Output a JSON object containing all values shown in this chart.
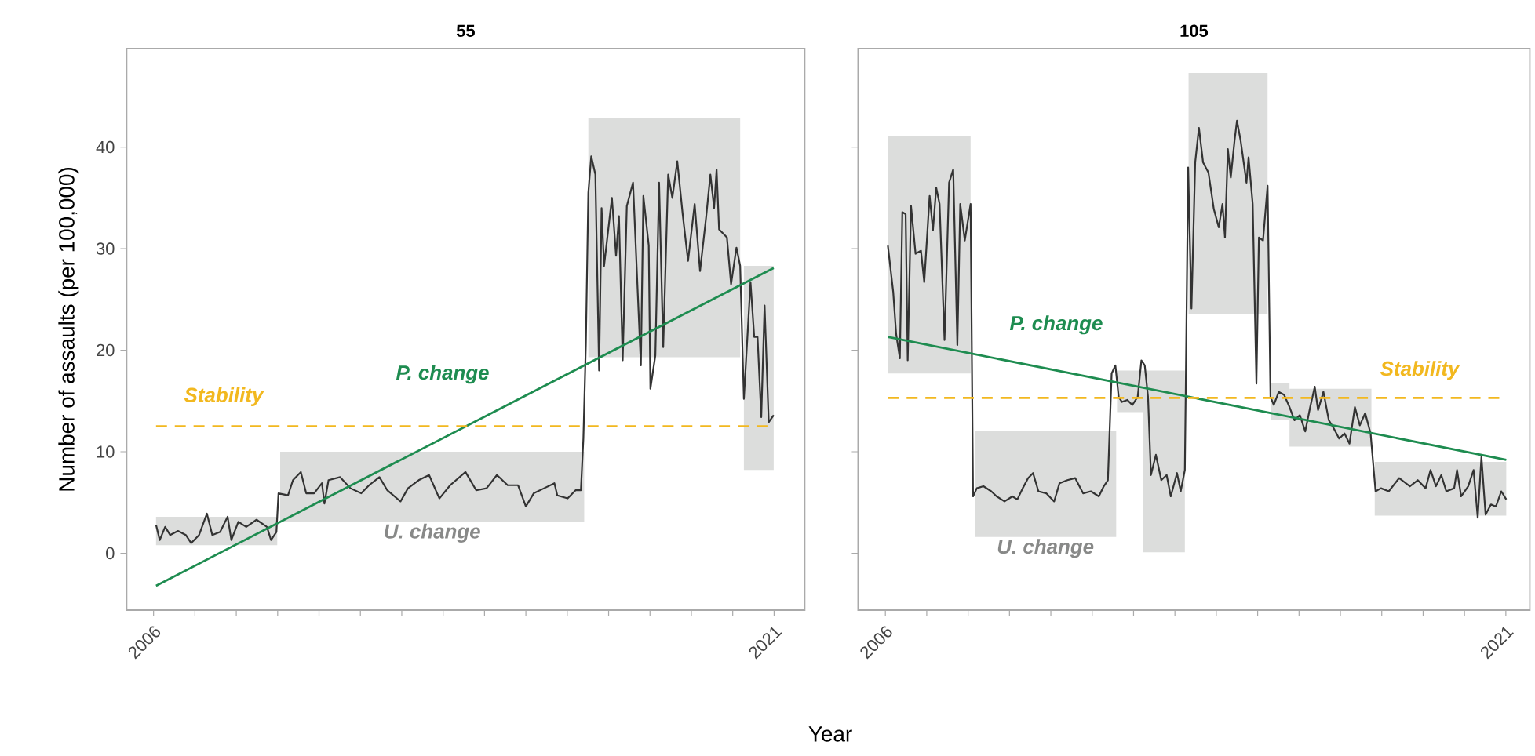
{
  "chart_data": [
    {
      "type": "line",
      "title": "55",
      "xlabel": "Year",
      "ylabel": "Number of assaults (per 100,000)",
      "xlim": [
        2005.35,
        2021.74
      ],
      "ylim": [
        -5.6,
        49.7
      ],
      "xticks": [
        2006,
        {
          "value": 2007,
          "label": null
        },
        {
          "value": 2008,
          "label": null
        },
        {
          "value": 2009,
          "label": null
        },
        {
          "value": 2010,
          "label": null
        },
        {
          "value": 2011,
          "label": null
        },
        {
          "value": 2012,
          "label": null
        },
        {
          "value": 2013,
          "label": null
        },
        {
          "value": 2014,
          "label": null
        },
        {
          "value": 2015,
          "label": null
        },
        {
          "value": 2016,
          "label": null
        },
        {
          "value": 2017,
          "label": null
        },
        {
          "value": 2018,
          "label": null
        },
        {
          "value": 2019,
          "label": null
        },
        {
          "value": 2020,
          "label": null
        },
        2021
      ],
      "yticks": [
        0,
        10,
        20,
        30,
        40
      ],
      "series": [
        {
          "type": "area",
          "color": "#dcdddc",
          "x": [
            2006.06,
            2008.99,
            null,
            2009.06,
            2016.41,
            null,
            2016.51,
            2020.18,
            null,
            2020.27,
            2020.99
          ],
          "values": [
            null,
            null,
            null,
            null,
            null,
            null,
            null,
            null,
            null,
            null,
            null
          ],
          "upper": [
            3.6,
            3.6,
            null,
            10.0,
            10.0,
            null,
            42.9,
            42.9,
            null,
            28.3,
            28.3
          ],
          "lower": [
            0.8,
            0.8,
            null,
            3.1,
            3.1,
            null,
            19.3,
            19.3,
            null,
            8.2,
            8.2
          ]
        },
        {
          "color": "#333333",
          "x": [
            2006.06,
            2006.15,
            2006.28,
            2006.4,
            2006.59,
            2006.78,
            2006.91,
            2007.1,
            2007.29,
            2007.42,
            2007.61,
            2007.79,
            2007.88,
            2008.05,
            2008.24,
            2008.49,
            2008.74,
            2008.84,
            2008.97,
            2009.02,
            2009.25,
            2009.37,
            2009.56,
            2009.69,
            2009.88,
            2010.07,
            2010.13,
            2010.23,
            2010.51,
            2010.76,
            2011.02,
            2011.21,
            2011.46,
            2011.65,
            2011.97,
            2012.15,
            2012.41,
            2012.66,
            2012.91,
            2013.17,
            2013.54,
            2013.8,
            2014.05,
            2014.3,
            2014.56,
            2014.81,
            2015.0,
            2015.19,
            2015.44,
            2015.69,
            2015.76,
            2016.01,
            2016.2,
            2016.33,
            2016.39,
            2016.45,
            2016.51,
            2016.58,
            2016.68,
            2016.77,
            2016.83,
            2016.89,
            2017.02,
            2017.08,
            2017.18,
            2017.25,
            2017.34,
            2017.44,
            2017.59,
            2017.78,
            2017.84,
            2017.97,
            2018.01,
            2018.13,
            2018.22,
            2018.32,
            2018.44,
            2018.54,
            2018.66,
            2018.79,
            2018.92,
            2019.08,
            2019.21,
            2019.36,
            2019.46,
            2019.55,
            2019.61,
            2019.67,
            2019.86,
            2019.96,
            2020.09,
            2020.18,
            2020.27,
            2020.43,
            2020.52,
            2020.6,
            2020.69,
            2020.77,
            2020.87,
            2020.99
          ],
          "values": [
            2.8,
            1.3,
            2.6,
            1.8,
            2.2,
            1.8,
            1.0,
            1.8,
            3.9,
            1.8,
            2.1,
            3.6,
            1.3,
            3.1,
            2.6,
            3.3,
            2.6,
            1.3,
            2.1,
            5.9,
            5.7,
            7.2,
            8.0,
            5.9,
            5.9,
            6.9,
            4.9,
            7.2,
            7.5,
            6.4,
            5.9,
            6.7,
            7.5,
            6.2,
            5.1,
            6.4,
            7.2,
            7.7,
            5.4,
            6.7,
            8.0,
            6.2,
            6.4,
            7.7,
            6.7,
            6.7,
            4.6,
            5.9,
            6.4,
            6.9,
            5.7,
            5.4,
            6.2,
            6.2,
            11.3,
            20.6,
            35.5,
            39.1,
            37.3,
            18.0,
            34.0,
            28.3,
            32.9,
            35.0,
            29.3,
            33.2,
            19.0,
            34.2,
            36.5,
            18.5,
            35.2,
            30.3,
            16.2,
            19.5,
            36.5,
            20.3,
            37.3,
            35.0,
            38.6,
            33.4,
            28.8,
            34.4,
            27.8,
            33.2,
            37.3,
            34.0,
            37.8,
            31.9,
            31.1,
            26.5,
            30.1,
            28.3,
            15.2,
            26.7,
            21.3,
            21.3,
            13.4,
            24.4,
            12.9,
            13.6
          ]
        },
        {
          "type": "line",
          "name": "P. change",
          "color": "#1e8c50",
          "x": [
            2006.06,
            2020.99
          ],
          "values": [
            -3.2,
            28.1
          ]
        }
      ],
      "ref_lines": [
        {
          "axis": "y",
          "value": 12.5,
          "label": "Stability",
          "color": "#f2b81f",
          "line_style": "dashed"
        }
      ],
      "annotations": [
        "U. change"
      ]
    },
    {
      "type": "line",
      "title": "105",
      "tick_labels": "x",
      "xlim": [
        2005.34,
        2021.58
      ],
      "ylim": [
        -5.6,
        49.7
      ],
      "xticks": [
        2006,
        {
          "value": 2007,
          "label": null
        },
        {
          "value": 2008,
          "label": null
        },
        {
          "value": 2009,
          "label": null
        },
        {
          "value": 2010,
          "label": null
        },
        {
          "value": 2011,
          "label": null
        },
        {
          "value": 2012,
          "label": null
        },
        {
          "value": 2013,
          "label": null
        },
        {
          "value": 2014,
          "label": null
        },
        {
          "value": 2015,
          "label": null
        },
        {
          "value": 2016,
          "label": null
        },
        {
          "value": 2017,
          "label": null
        },
        {
          "value": 2018,
          "label": null
        },
        {
          "value": 2019,
          "label": null
        },
        {
          "value": 2020,
          "label": null
        },
        2021
      ],
      "yticks": [
        0,
        10,
        20,
        30,
        40
      ],
      "series": [
        {
          "type": "area",
          "color": "#dcdddc",
          "x": [
            2006.06,
            2008.06,
            null,
            2008.16,
            2011.58,
            null,
            2011.6,
            2012.23,
            null,
            2012.23,
            2013.24,
            null,
            2013.33,
            2015.24,
            null,
            2015.31,
            2015.77,
            null,
            2015.77,
            2017.75,
            null,
            2017.83,
            2021.01
          ],
          "values": [
            null,
            null,
            null,
            null,
            null,
            null,
            null,
            null,
            null,
            null,
            null,
            null,
            null,
            null,
            null,
            null,
            null,
            null,
            null,
            null,
            null,
            null,
            null
          ],
          "upper": [
            41.1,
            41.1,
            null,
            12.0,
            12.0,
            null,
            18.0,
            18.0,
            null,
            18.0,
            18.0,
            null,
            47.3,
            47.3,
            null,
            16.8,
            16.8,
            null,
            16.2,
            16.2,
            null,
            9.0,
            9.0
          ],
          "lower": [
            17.7,
            17.7,
            null,
            1.6,
            1.6,
            null,
            13.9,
            13.9,
            null,
            0.1,
            0.1,
            null,
            23.6,
            23.6,
            null,
            13.1,
            13.1,
            null,
            10.5,
            10.5,
            null,
            3.7,
            3.7
          ]
        },
        {
          "color": "#333333",
          "x": [
            2006.06,
            2006.19,
            2006.26,
            2006.35,
            2006.41,
            2006.49,
            2006.54,
            2006.62,
            2006.73,
            2006.86,
            2006.94,
            2007.07,
            2007.15,
            2007.23,
            2007.31,
            2007.43,
            2007.54,
            2007.64,
            2007.74,
            2007.81,
            2007.92,
            2008.06,
            2008.12,
            2008.21,
            2008.37,
            2008.56,
            2008.69,
            2008.88,
            2009.07,
            2009.19,
            2009.32,
            2009.45,
            2009.57,
            2009.7,
            2009.89,
            2010.08,
            2010.21,
            2010.4,
            2010.59,
            2010.78,
            2010.97,
            2011.16,
            2011.28,
            2011.38,
            2011.47,
            2011.56,
            2011.64,
            2011.72,
            2011.85,
            2011.97,
            2012.1,
            2012.19,
            2012.27,
            2012.35,
            2012.42,
            2012.54,
            2012.67,
            2012.8,
            2012.9,
            2013.05,
            2013.14,
            2013.24,
            2013.32,
            2013.4,
            2013.49,
            2013.58,
            2013.68,
            2013.81,
            2013.94,
            2014.06,
            2014.15,
            2014.21,
            2014.28,
            2014.35,
            2014.44,
            2014.5,
            2014.59,
            2014.73,
            2014.78,
            2014.88,
            2014.97,
            2015.03,
            2015.13,
            2015.24,
            2015.31,
            2015.39,
            2015.51,
            2015.64,
            2015.77,
            2015.89,
            2016.02,
            2016.15,
            2016.27,
            2016.38,
            2016.46,
            2016.59,
            2016.72,
            2016.84,
            2016.97,
            2017.1,
            2017.22,
            2017.35,
            2017.47,
            2017.6,
            2017.73,
            2017.85,
            2017.98,
            2018.17,
            2018.42,
            2018.68,
            2018.87,
            2019.06,
            2019.18,
            2019.31,
            2019.44,
            2019.56,
            2019.75,
            2019.82,
            2019.92,
            2020.09,
            2020.22,
            2020.32,
            2020.41,
            2020.51,
            2020.64,
            2020.76,
            2020.89,
            2021.01
          ],
          "values": [
            30.3,
            25.7,
            21.6,
            19.2,
            33.6,
            33.4,
            19.0,
            34.2,
            29.5,
            29.8,
            26.7,
            35.2,
            31.8,
            36.0,
            34.4,
            21.0,
            36.5,
            37.8,
            20.5,
            34.4,
            30.8,
            34.4,
            5.6,
            6.4,
            6.6,
            6.1,
            5.6,
            5.1,
            5.6,
            5.3,
            6.4,
            7.4,
            7.9,
            6.1,
            5.9,
            5.1,
            6.9,
            7.2,
            7.4,
            5.9,
            6.1,
            5.6,
            6.6,
            7.2,
            17.7,
            18.5,
            15.4,
            14.9,
            15.1,
            14.6,
            15.4,
            19.0,
            18.5,
            15.4,
            7.7,
            9.7,
            7.2,
            7.7,
            5.6,
            7.9,
            6.1,
            8.2,
            38.0,
            24.1,
            38.5,
            41.9,
            38.5,
            37.5,
            33.9,
            32.1,
            34.4,
            31.1,
            39.8,
            37.0,
            40.6,
            42.6,
            40.6,
            36.5,
            39.0,
            34.4,
            16.7,
            31.1,
            30.8,
            36.2,
            15.4,
            14.6,
            15.9,
            15.6,
            14.4,
            13.1,
            13.6,
            12.0,
            14.4,
            16.4,
            14.1,
            15.9,
            13.1,
            12.3,
            11.3,
            11.8,
            10.8,
            14.4,
            12.6,
            13.8,
            11.8,
            6.1,
            6.4,
            6.1,
            7.4,
            6.6,
            7.2,
            6.4,
            8.2,
            6.6,
            7.7,
            6.1,
            6.4,
            8.2,
            5.6,
            6.6,
            8.2,
            3.5,
            9.5,
            3.8,
            4.8,
            4.6,
            6.1,
            5.3
          ]
        },
        {
          "type": "line",
          "name": "P. change",
          "color": "#1e8c50",
          "x": [
            2006.06,
            2021.01
          ],
          "values": [
            21.3,
            9.2
          ]
        }
      ],
      "ref_lines": [
        {
          "axis": "y",
          "value": 15.3,
          "label": "Stability",
          "color": "#f2b81f",
          "line_style": "dashed"
        }
      ],
      "annotations": [
        "U. change"
      ]
    }
  ]
}
